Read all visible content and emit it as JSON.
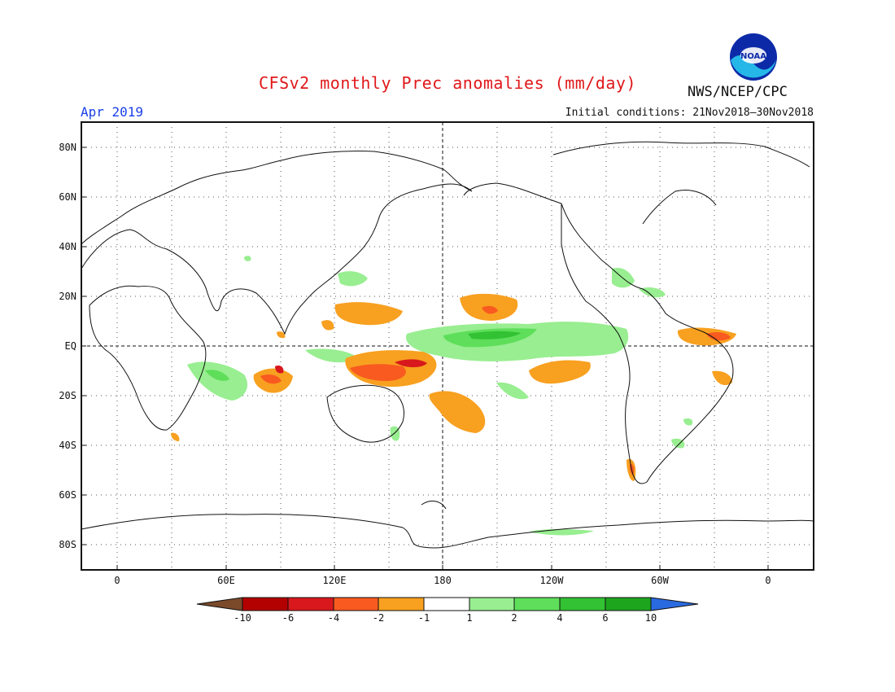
{
  "title": "CFSv2 monthly Prec anomalies (mm/day)",
  "agency": "NWS/NCEP/CPC",
  "logo_text": "NOAA",
  "forecast_month": "Apr 2019",
  "initial_conditions": "Initial conditions: 21Nov2018–30Nov2018",
  "map": {
    "lat_labels": [
      "80N",
      "60N",
      "40N",
      "20N",
      "EQ",
      "20S",
      "40S",
      "60S",
      "80S"
    ],
    "lon_labels": [
      "0",
      "60E",
      "120E",
      "180",
      "120W",
      "60W",
      "0"
    ],
    "grid": "dotted",
    "reference_lines": [
      "EQ",
      "180"
    ]
  },
  "colorbar": {
    "tick_labels": [
      "-10",
      "-6",
      "-4",
      "-2",
      "-1",
      "1",
      "2",
      "4",
      "6",
      "10"
    ],
    "colors": {
      "below_-10": "#7a4a2a",
      "-10_-6": "#b30000",
      "-6_-4": "#d8181c",
      "-4_-2": "#f85a20",
      "-2_-1": "#f8a020",
      "-1_1": "#ffffff",
      "1_2": "#98ee90",
      "2_4": "#5ede5a",
      "4_6": "#32c233",
      "6_10": "#1ea51e",
      "above_10": "#2a6ae0"
    }
  }
}
